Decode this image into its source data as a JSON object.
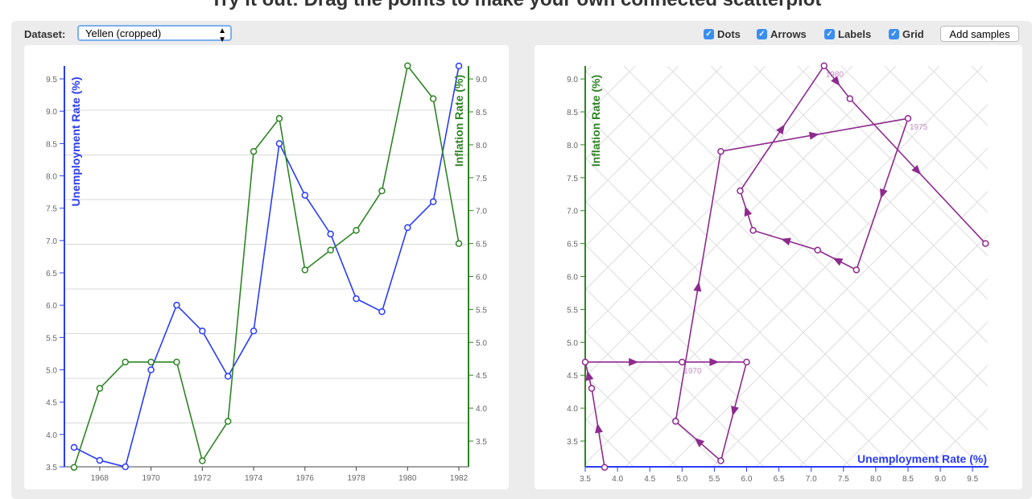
{
  "title": "Try it out: Drag the points to make your own connected scatterplot",
  "controls": {
    "dataset_label": "Dataset:",
    "dataset_value": "Yellen (cropped)",
    "checkboxes": [
      {
        "label": "Dots",
        "checked": true
      },
      {
        "label": "Arrows",
        "checked": true
      },
      {
        "label": "Labels",
        "checked": true
      },
      {
        "label": "Grid",
        "checked": true
      }
    ],
    "add_samples": "Add samples"
  },
  "colors": {
    "unemployment": "#2a3cf5",
    "inflation": "#2e8424",
    "connected": "#8e2a8e",
    "label": "#c58ec5"
  },
  "chart_data": [
    {
      "type": "line",
      "xlabel": "",
      "x": [
        1967,
        1968,
        1969,
        1970,
        1971,
        1972,
        1973,
        1974,
        1975,
        1976,
        1977,
        1978,
        1979,
        1980,
        1981,
        1982
      ],
      "xticks": [
        1968,
        1970,
        1972,
        1974,
        1976,
        1978,
        1980,
        1982
      ],
      "series": [
        {
          "name": "Unemployment Rate (%)",
          "axis": "left",
          "values": [
            3.8,
            3.6,
            3.5,
            5.0,
            6.0,
            5.6,
            4.9,
            5.6,
            8.5,
            7.7,
            7.1,
            6.1,
            5.9,
            7.2,
            7.6,
            9.7
          ]
        },
        {
          "name": "Inflation Rate (%)",
          "axis": "right",
          "values": [
            3.1,
            4.3,
            4.7,
            4.7,
            4.7,
            3.2,
            3.8,
            7.9,
            8.4,
            6.1,
            6.4,
            6.7,
            7.3,
            9.2,
            8.7,
            6.5
          ]
        }
      ],
      "yleft_ticks": [
        3.5,
        4.0,
        4.5,
        5.0,
        5.5,
        6.0,
        6.5,
        7.0,
        7.5,
        8.0,
        8.5,
        9.0,
        9.5
      ],
      "yright_ticks": [
        3.5,
        4.0,
        4.5,
        5.0,
        5.5,
        6.0,
        6.5,
        7.0,
        7.5,
        8.0,
        8.5,
        9.0
      ],
      "grid": true
    },
    {
      "type": "scatter",
      "connected": true,
      "xlabel": "Unemployment Rate (%)",
      "ylabel": "Inflation Rate (%)",
      "xticks": [
        3.5,
        4.0,
        4.5,
        5.0,
        5.5,
        6.0,
        6.5,
        7.0,
        7.5,
        8.0,
        8.5,
        9.0,
        9.5
      ],
      "yticks": [
        3.5,
        4.0,
        4.5,
        5.0,
        5.5,
        6.0,
        6.5,
        7.0,
        7.5,
        8.0,
        8.5,
        9.0
      ],
      "point_labels": [
        {
          "year": "1970",
          "index": 3
        },
        {
          "year": "1975",
          "index": 8
        },
        {
          "year": "1980",
          "index": 13
        }
      ],
      "grid": "diagonal"
    }
  ]
}
